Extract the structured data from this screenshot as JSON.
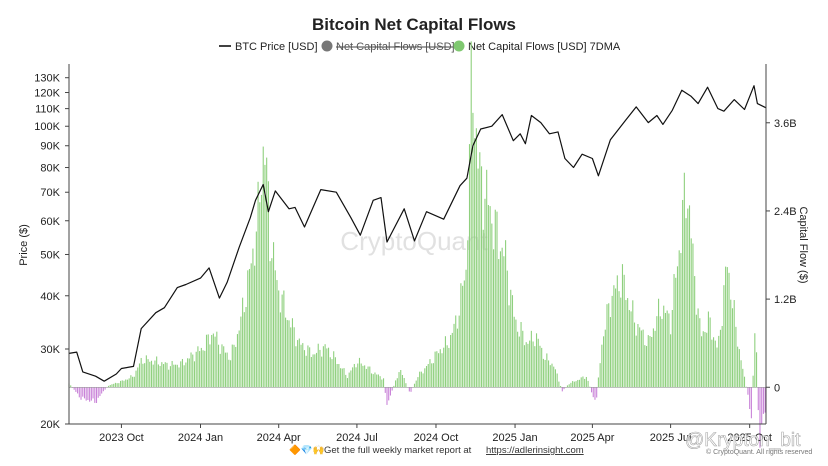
{
  "chart_data": {
    "type": "line",
    "title": "Bitcoin Net Capital Flows",
    "legend": [
      {
        "label": "BTC Price [USD]",
        "symbol": "line",
        "color": "#111111",
        "visible": true
      },
      {
        "label": "Net Capital Flows [USD]",
        "symbol": "dot",
        "color": "#777777",
        "visible": false
      },
      {
        "label": "Net Capital Flows [USD] 7DMA",
        "symbol": "dot",
        "color": "#7fc870",
        "visible": true
      }
    ],
    "legend_position": "top-center",
    "ylabel": "Price ($)",
    "y2label": "Capital Flow ($)",
    "y_scale": "log",
    "ylim": [
      20000,
      140000
    ],
    "y2lim": [
      -0.5,
      4.4
    ],
    "y2_unit": "B",
    "y_ticks": [
      {
        "v": 20000,
        "label": "20K"
      },
      {
        "v": 30000,
        "label": "30K"
      },
      {
        "v": 40000,
        "label": "40K"
      },
      {
        "v": 50000,
        "label": "50K"
      },
      {
        "v": 60000,
        "label": "60K"
      },
      {
        "v": 70000,
        "label": "70K"
      },
      {
        "v": 80000,
        "label": "80K"
      },
      {
        "v": 90000,
        "label": "90K"
      },
      {
        "v": 100000,
        "label": "100K"
      },
      {
        "v": 110000,
        "label": "110K"
      },
      {
        "v": 120000,
        "label": "120K"
      },
      {
        "v": 130000,
        "label": "130K"
      }
    ],
    "y2_ticks": [
      {
        "v": 0,
        "label": "0"
      },
      {
        "v": 1.2,
        "label": "1.2B"
      },
      {
        "v": 2.4,
        "label": "2.4B"
      },
      {
        "v": 3.6,
        "label": "3.6B"
      }
    ],
    "x_range": [
      "2023-08-01",
      "2025-10-20"
    ],
    "x_ticks": [
      {
        "date": "2023-10-01",
        "label": "2023 Oct"
      },
      {
        "date": "2024-01-01",
        "label": "2024 Jan"
      },
      {
        "date": "2024-04-01",
        "label": "2024 Apr"
      },
      {
        "date": "2024-07-01",
        "label": "2024 Jul"
      },
      {
        "date": "2024-10-01",
        "label": "2024 Oct"
      },
      {
        "date": "2025-01-01",
        "label": "2025 Jan"
      },
      {
        "date": "2025-04-01",
        "label": "2025 Apr"
      },
      {
        "date": "2025-07-01",
        "label": "2025 Jul"
      },
      {
        "date": "2025-10-01",
        "label": "2025 Oct"
      }
    ],
    "grid": false,
    "series": [
      {
        "name": "BTC Price [USD]",
        "type": "line",
        "axis": "left",
        "color": "#111111",
        "points": [
          [
            "2023-08-01",
            29300
          ],
          [
            "2023-08-10",
            29500
          ],
          [
            "2023-08-17",
            26500
          ],
          [
            "2023-09-01",
            25900
          ],
          [
            "2023-09-11",
            25200
          ],
          [
            "2023-09-25",
            26200
          ],
          [
            "2023-10-01",
            27000
          ],
          [
            "2023-10-15",
            27300
          ],
          [
            "2023-10-24",
            33500
          ],
          [
            "2023-11-10",
            36500
          ],
          [
            "2023-11-20",
            37500
          ],
          [
            "2023-12-05",
            41800
          ],
          [
            "2023-12-15",
            42500
          ],
          [
            "2024-01-01",
            44000
          ],
          [
            "2024-01-11",
            46500
          ],
          [
            "2024-01-23",
            39500
          ],
          [
            "2024-02-01",
            43000
          ],
          [
            "2024-02-15",
            52000
          ],
          [
            "2024-02-28",
            61000
          ],
          [
            "2024-03-05",
            67000
          ],
          [
            "2024-03-14",
            73000
          ],
          [
            "2024-03-20",
            63000
          ],
          [
            "2024-03-28",
            70500
          ],
          [
            "2024-04-13",
            64000
          ],
          [
            "2024-04-20",
            64500
          ],
          [
            "2024-05-01",
            58000
          ],
          [
            "2024-05-20",
            71000
          ],
          [
            "2024-06-07",
            70000
          ],
          [
            "2024-06-24",
            61000
          ],
          [
            "2024-07-05",
            55500
          ],
          [
            "2024-07-20",
            67000
          ],
          [
            "2024-07-29",
            68000
          ],
          [
            "2024-08-05",
            53500
          ],
          [
            "2024-08-25",
            64000
          ],
          [
            "2024-09-06",
            53800
          ],
          [
            "2024-09-20",
            63000
          ],
          [
            "2024-10-10",
            60500
          ],
          [
            "2024-10-29",
            72500
          ],
          [
            "2024-11-06",
            75500
          ],
          [
            "2024-11-13",
            90000
          ],
          [
            "2024-11-22",
            98500
          ],
          [
            "2024-12-05",
            100000
          ],
          [
            "2024-12-17",
            106500
          ],
          [
            "2024-12-30",
            92500
          ],
          [
            "2025-01-07",
            96000
          ],
          [
            "2025-01-13",
            91000
          ],
          [
            "2025-01-20",
            106000
          ],
          [
            "2025-01-31",
            102000
          ],
          [
            "2025-02-10",
            96000
          ],
          [
            "2025-02-20",
            97000
          ],
          [
            "2025-02-28",
            84000
          ],
          [
            "2025-03-10",
            80000
          ],
          [
            "2025-03-20",
            86000
          ],
          [
            "2025-04-01",
            84000
          ],
          [
            "2025-04-08",
            76500
          ],
          [
            "2025-04-22",
            93000
          ],
          [
            "2025-05-10",
            103500
          ],
          [
            "2025-05-22",
            111000
          ],
          [
            "2025-06-05",
            102000
          ],
          [
            "2025-06-15",
            106000
          ],
          [
            "2025-06-22",
            101000
          ],
          [
            "2025-07-03",
            109000
          ],
          [
            "2025-07-14",
            121500
          ],
          [
            "2025-07-25",
            117500
          ],
          [
            "2025-08-02",
            113000
          ],
          [
            "2025-08-13",
            123500
          ],
          [
            "2025-08-25",
            110000
          ],
          [
            "2025-09-01",
            108500
          ],
          [
            "2025-09-13",
            115500
          ],
          [
            "2025-09-25",
            109500
          ],
          [
            "2025-10-06",
            124500
          ],
          [
            "2025-10-10",
            113000
          ],
          [
            "2025-10-20",
            110500
          ]
        ]
      },
      {
        "name": "Net Capital Flows [USD] 7DMA",
        "type": "bar",
        "axis": "right",
        "color": "#8fd07e",
        "negative_color": "#c983d8",
        "unit": "B",
        "points": [
          [
            "2023-08-01",
            0.05
          ],
          [
            "2023-08-15",
            -0.15
          ],
          [
            "2023-09-01",
            -0.2
          ],
          [
            "2023-09-15",
            0.02
          ],
          [
            "2023-10-01",
            0.08
          ],
          [
            "2023-10-15",
            0.15
          ],
          [
            "2023-10-25",
            0.38
          ],
          [
            "2023-11-10",
            0.35
          ],
          [
            "2023-11-25",
            0.3
          ],
          [
            "2023-12-10",
            0.32
          ],
          [
            "2024-01-05",
            0.55
          ],
          [
            "2024-01-15",
            0.75
          ],
          [
            "2024-01-25",
            0.55
          ],
          [
            "2024-02-05",
            0.4
          ],
          [
            "2024-02-15",
            0.8
          ],
          [
            "2024-02-28",
            1.6
          ],
          [
            "2024-03-08",
            2.3
          ],
          [
            "2024-03-15",
            3.4
          ],
          [
            "2024-03-22",
            2.1
          ],
          [
            "2024-03-30",
            1.4
          ],
          [
            "2024-04-10",
            1.0
          ],
          [
            "2024-04-25",
            0.6
          ],
          [
            "2024-05-10",
            0.45
          ],
          [
            "2024-05-25",
            0.55
          ],
          [
            "2024-06-05",
            0.4
          ],
          [
            "2024-06-20",
            0.15
          ],
          [
            "2024-07-01",
            0.35
          ],
          [
            "2024-07-10",
            0.3
          ],
          [
            "2024-07-20",
            0.2
          ],
          [
            "2024-08-01",
            0.12
          ],
          [
            "2024-08-05",
            -0.25
          ],
          [
            "2024-08-20",
            0.25
          ],
          [
            "2024-09-01",
            -0.08
          ],
          [
            "2024-09-10",
            0.15
          ],
          [
            "2024-09-25",
            0.35
          ],
          [
            "2024-10-05",
            0.5
          ],
          [
            "2024-10-15",
            0.6
          ],
          [
            "2024-10-25",
            0.9
          ],
          [
            "2024-11-05",
            1.6
          ],
          [
            "2024-11-12",
            4.3
          ],
          [
            "2024-11-20",
            2.9
          ],
          [
            "2024-12-01",
            2.5
          ],
          [
            "2024-12-10",
            2.1
          ],
          [
            "2024-12-20",
            1.8
          ],
          [
            "2025-01-01",
            0.9
          ],
          [
            "2025-01-15",
            0.6
          ],
          [
            "2025-01-25",
            0.7
          ],
          [
            "2025-02-05",
            0.4
          ],
          [
            "2025-02-15",
            0.3
          ],
          [
            "2025-02-25",
            -0.05
          ],
          [
            "2025-03-05",
            0.05
          ],
          [
            "2025-03-15",
            0.1
          ],
          [
            "2025-03-25",
            0.15
          ],
          [
            "2025-04-01",
            -0.1
          ],
          [
            "2025-04-05",
            -0.25
          ],
          [
            "2025-04-12",
            0.6
          ],
          [
            "2025-04-22",
            1.2
          ],
          [
            "2025-05-05",
            1.5
          ],
          [
            "2025-05-20",
            0.9
          ],
          [
            "2025-06-05",
            0.6
          ],
          [
            "2025-06-20",
            1.1
          ],
          [
            "2025-07-01",
            0.9
          ],
          [
            "2025-07-12",
            2.0
          ],
          [
            "2025-07-20",
            2.8
          ],
          [
            "2025-07-28",
            1.6
          ],
          [
            "2025-08-05",
            0.7
          ],
          [
            "2025-08-15",
            0.9
          ],
          [
            "2025-08-25",
            0.5
          ],
          [
            "2025-09-05",
            1.7
          ],
          [
            "2025-09-15",
            0.8
          ],
          [
            "2025-09-22",
            0.3
          ],
          [
            "2025-09-28",
            -0.05
          ],
          [
            "2025-10-03",
            -0.4
          ],
          [
            "2025-10-08",
            1.0
          ],
          [
            "2025-10-12",
            -0.75
          ],
          [
            "2025-10-16",
            -0.45
          ],
          [
            "2025-10-20",
            -0.3
          ]
        ]
      }
    ]
  },
  "watermark": "CryptoQuant",
  "footer": {
    "icons": "🔶💎🙌",
    "text": "Get the full weekly market report at",
    "link": "https://adlerinsight.com"
  },
  "copyright": "© CryptoQuant. All rights reserved",
  "overlay_watermark": "@Krypton_bit"
}
